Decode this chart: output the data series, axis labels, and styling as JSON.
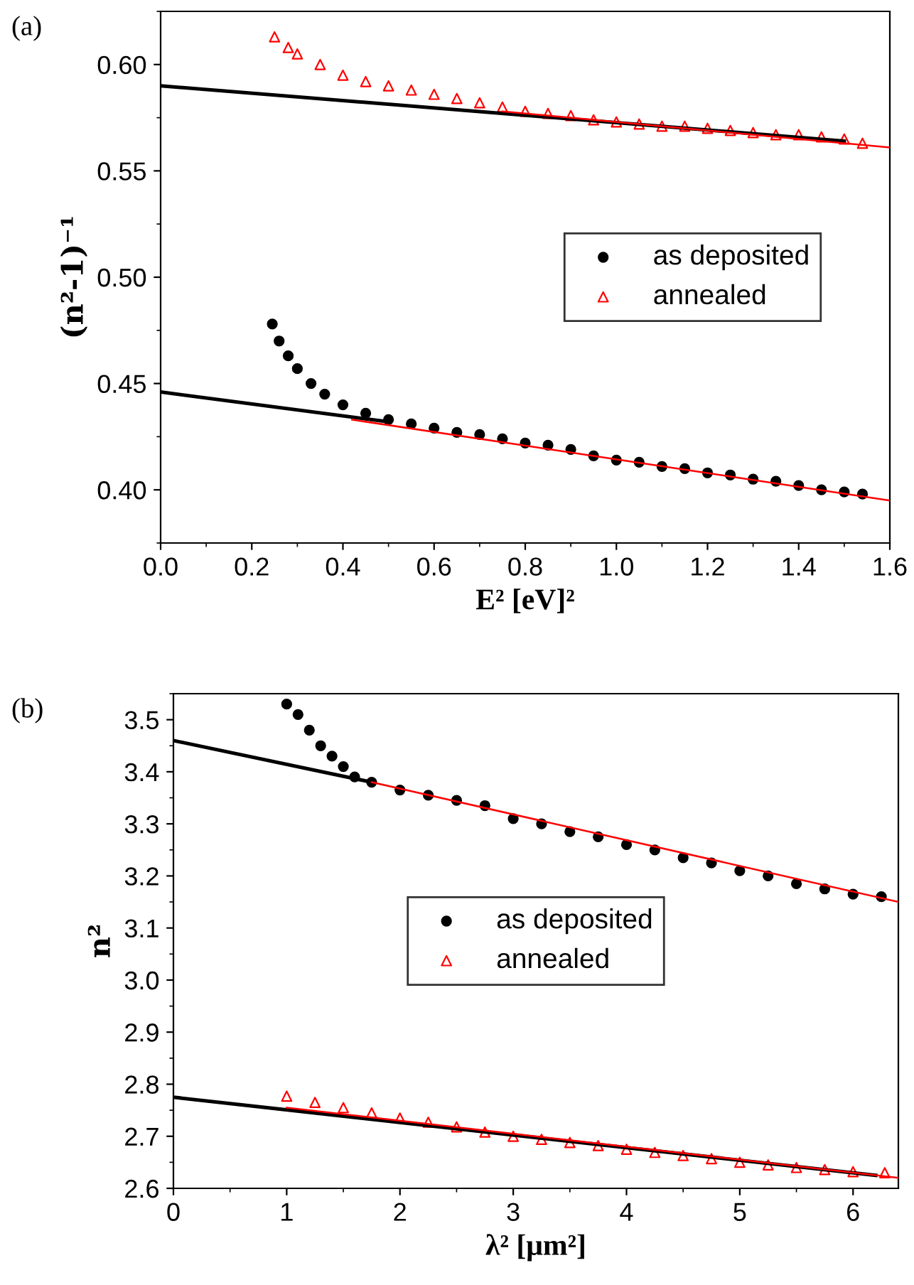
{
  "chart_data": [
    {
      "type": "scatter",
      "xlabel": "E² [eV]²",
      "ylabel": "(n²-1)⁻¹",
      "annotations": [
        "(a)"
      ],
      "xlim": [
        0,
        1.6
      ],
      "ylim": [
        0.375,
        0.625
      ],
      "xticks": [
        {
          "value": 0,
          "label": "0.0"
        },
        0.2,
        0.4,
        0.6,
        0.8,
        {
          "value": 1,
          "label": "1.0"
        },
        1.2,
        1.4,
        1.6
      ],
      "yticks": [
        {
          "value": 0.4,
          "label": "0.40"
        },
        0.45,
        {
          "value": 0.5,
          "label": "0.50"
        },
        0.55,
        {
          "value": 0.6,
          "label": "0.60"
        }
      ],
      "grid": false,
      "legend": "right",
      "series": [
        {
          "name": "as deposited",
          "marker": "circle",
          "color": "#000000",
          "x": [
            0.245,
            0.26,
            0.28,
            0.3,
            0.33,
            0.36,
            0.4,
            0.45,
            0.5,
            0.55,
            0.6,
            0.65,
            0.7,
            0.75,
            0.8,
            0.85,
            0.9,
            0.95,
            1.0,
            1.05,
            1.1,
            1.15,
            1.2,
            1.25,
            1.3,
            1.35,
            1.4,
            1.45,
            1.5,
            1.54
          ],
          "values": [
            0.478,
            0.47,
            0.463,
            0.457,
            0.45,
            0.445,
            0.44,
            0.436,
            0.433,
            0.431,
            0.429,
            0.427,
            0.426,
            0.424,
            0.422,
            0.421,
            0.419,
            0.416,
            0.414,
            0.413,
            0.411,
            0.41,
            0.408,
            0.407,
            0.405,
            0.404,
            0.402,
            0.4,
            0.399,
            0.398
          ]
        },
        {
          "name": "annealed",
          "marker": "triangle",
          "color": "#ff0000",
          "x": [
            0.25,
            0.28,
            0.3,
            0.35,
            0.4,
            0.45,
            0.5,
            0.55,
            0.6,
            0.65,
            0.7,
            0.75,
            0.8,
            0.85,
            0.9,
            0.95,
            1.0,
            1.05,
            1.1,
            1.15,
            1.2,
            1.25,
            1.3,
            1.35,
            1.4,
            1.45,
            1.5,
            1.54
          ],
          "values": [
            0.613,
            0.608,
            0.605,
            0.6,
            0.595,
            0.592,
            0.59,
            0.588,
            0.586,
            0.584,
            0.582,
            0.58,
            0.578,
            0.577,
            0.576,
            0.574,
            0.573,
            0.572,
            0.571,
            0.571,
            0.57,
            0.569,
            0.568,
            0.567,
            0.567,
            0.566,
            0.565,
            0.563
          ]
        },
        {
          "type": "line",
          "color": "#000000",
          "x": [
            0,
            1.5
          ],
          "values": [
            0.59,
            0.564
          ]
        },
        {
          "type": "line",
          "color": "#ff0000",
          "x": [
            0.75,
            1.6
          ],
          "values": [
            0.578,
            0.561
          ]
        },
        {
          "type": "line",
          "color": "#000000",
          "x": [
            0,
            0.5
          ],
          "values": [
            0.446,
            0.432
          ]
        },
        {
          "type": "line",
          "color": "#ff0000",
          "x": [
            0.42,
            1.6
          ],
          "values": [
            0.433,
            0.395
          ]
        }
      ]
    },
    {
      "type": "scatter",
      "xlabel": "λ² [μm²]",
      "ylabel": "n²",
      "annotations": [
        "(b)"
      ],
      "xlim": [
        0,
        6.4
      ],
      "ylim": [
        2.6,
        3.55
      ],
      "xticks": [
        0,
        1,
        2,
        3,
        4,
        5,
        6
      ],
      "yticks": [
        2.6,
        2.7,
        2.8,
        2.9,
        {
          "value": 3,
          "label": "3.0"
        },
        3.1,
        3.2,
        3.3,
        3.4,
        3.5
      ],
      "grid": false,
      "legend": "center",
      "series": [
        {
          "name": "as deposited",
          "marker": "circle",
          "color": "#000000",
          "x": [
            1.0,
            1.1,
            1.2,
            1.3,
            1.4,
            1.5,
            1.6,
            1.75,
            2.0,
            2.25,
            2.5,
            2.75,
            3.0,
            3.25,
            3.5,
            3.75,
            4.0,
            4.25,
            4.5,
            4.75,
            5.0,
            5.25,
            5.5,
            5.75,
            6.0,
            6.25
          ],
          "values": [
            3.53,
            3.51,
            3.48,
            3.45,
            3.43,
            3.41,
            3.39,
            3.38,
            3.365,
            3.355,
            3.345,
            3.335,
            3.31,
            3.3,
            3.285,
            3.275,
            3.26,
            3.25,
            3.235,
            3.225,
            3.21,
            3.2,
            3.185,
            3.175,
            3.165,
            3.16
          ]
        },
        {
          "name": "annealed",
          "marker": "triangle",
          "color": "#ff0000",
          "x": [
            1.0,
            1.25,
            1.5,
            1.75,
            2.0,
            2.25,
            2.5,
            2.75,
            3.0,
            3.25,
            3.5,
            3.75,
            4.0,
            4.25,
            4.5,
            4.75,
            5.0,
            5.25,
            5.5,
            5.75,
            6.0,
            6.28
          ],
          "values": [
            2.777,
            2.765,
            2.755,
            2.745,
            2.735,
            2.727,
            2.718,
            2.708,
            2.7,
            2.694,
            2.688,
            2.682,
            2.675,
            2.669,
            2.663,
            2.657,
            2.65,
            2.645,
            2.64,
            2.636,
            2.632,
            2.63
          ]
        },
        {
          "type": "line",
          "color": "#000000",
          "x": [
            0,
            1.75
          ],
          "values": [
            3.46,
            3.38
          ]
        },
        {
          "type": "line",
          "color": "#ff0000",
          "x": [
            1.75,
            6.4
          ],
          "values": [
            3.38,
            3.15
          ]
        },
        {
          "type": "line",
          "color": "#000000",
          "x": [
            0,
            6.2
          ],
          "values": [
            2.775,
            2.625
          ]
        },
        {
          "type": "line",
          "color": "#ff0000",
          "x": [
            1.0,
            6.4
          ],
          "values": [
            2.755,
            2.62
          ]
        }
      ]
    }
  ]
}
